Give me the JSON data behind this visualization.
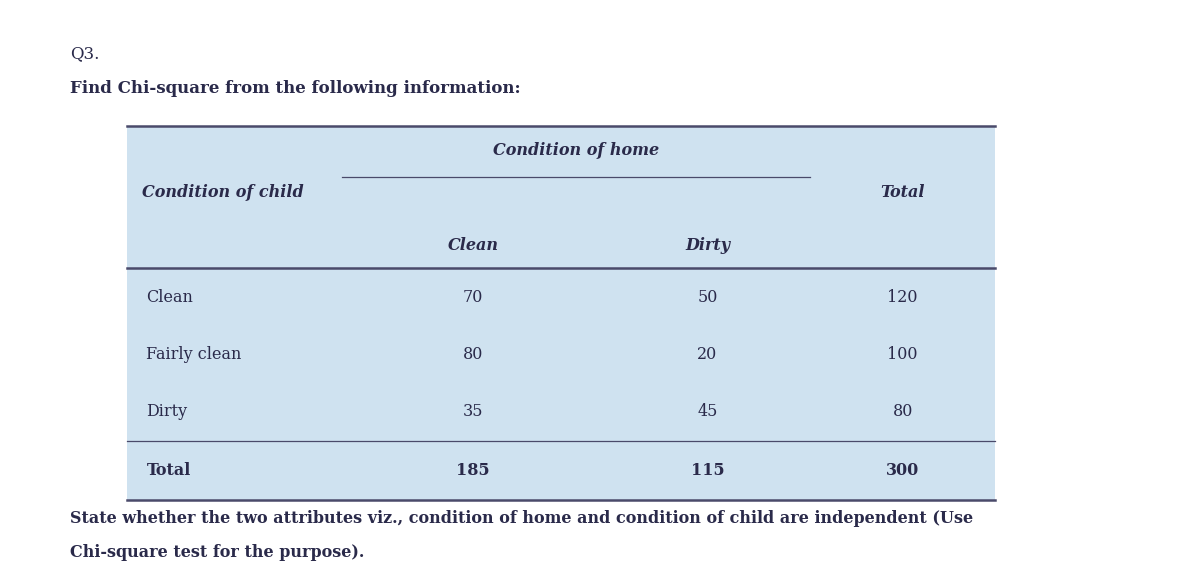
{
  "q_label": "Q3.",
  "subtitle": "Find Chi-square from the following information:",
  "footer": "State whether the two attributes viz., condition of home and condition of child are independent (Use\nChi-square test for the purpose).",
  "table_bg_color": "#cfe2f0",
  "page_bg_color": "#ffffff",
  "header_span_label": "Condition of home",
  "row_header_label": "Condition of child",
  "col_headers": [
    "Clean",
    "Dirty"
  ],
  "total_col_header": "Total",
  "rows": [
    {
      "label": "Clean",
      "values": [
        70,
        50
      ],
      "total": 120
    },
    {
      "label": "Fairly clean",
      "values": [
        80,
        20
      ],
      "total": 100
    },
    {
      "label": "Dirty",
      "values": [
        35,
        45
      ],
      "total": 80
    }
  ],
  "total_row": {
    "label": "Total",
    "values": [
      185,
      115
    ],
    "total": 300
  },
  "font_family": "DejaVu Serif",
  "q_fontsize": 12,
  "subtitle_fontsize": 12,
  "header_fontsize": 11.5,
  "cell_fontsize": 11.5,
  "footer_fontsize": 11.5,
  "border_color": "#4a4a6a",
  "text_color": "#2a2a4a"
}
